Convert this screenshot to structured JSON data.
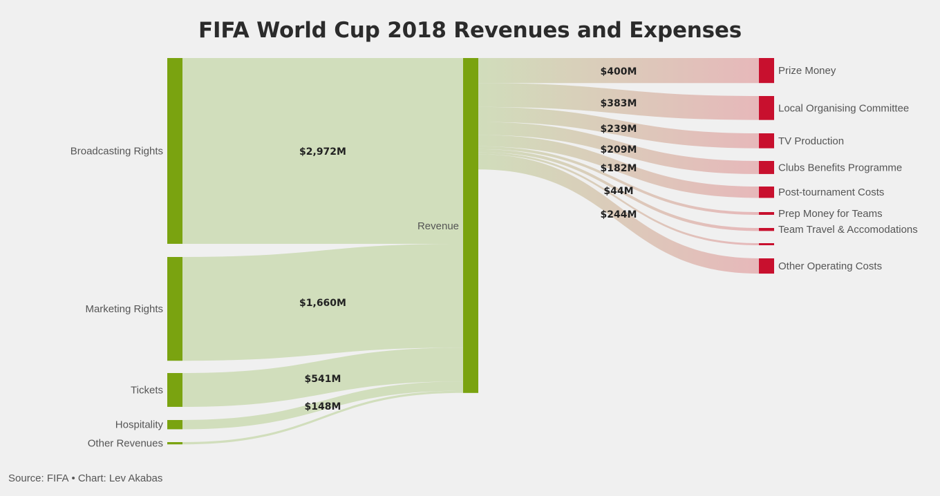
{
  "title": "FIFA World Cup 2018 Revenues and Expenses",
  "source": {
    "text": "Source: FIFA",
    "separator": "•",
    "credit": "Chart: Lev Akabas"
  },
  "colors": {
    "revenue_node": "#7aa310",
    "revenue_link": "#cfdcb8",
    "expense_node": "#c8102e",
    "expense_link": "#e6b5b7",
    "background": "#f0f0f0"
  },
  "chart_data": {
    "type": "sankey",
    "title": "FIFA World Cup 2018 Revenues and Expenses",
    "center_node": "Revenue",
    "sources": [
      {
        "name": "Broadcasting Rights",
        "value": 2972,
        "label": "$2,972M"
      },
      {
        "name": "Marketing Rights",
        "value": 1660,
        "label": "$1,660M"
      },
      {
        "name": "Tickets",
        "value": 541,
        "label": "$541M"
      },
      {
        "name": "Hospitality",
        "value": 148,
        "label": "$148M"
      },
      {
        "name": "Other Revenues",
        "value": 36,
        "label": ""
      }
    ],
    "targets": [
      {
        "name": "Prize Money",
        "value": 400,
        "label": "$400M"
      },
      {
        "name": "Local Organising Committee",
        "value": 383,
        "label": "$383M"
      },
      {
        "name": "TV Production",
        "value": 239,
        "label": "$239M"
      },
      {
        "name": "Clubs Benefits Programme",
        "value": 209,
        "label": "$209M"
      },
      {
        "name": "Post-tournament Costs",
        "value": 182,
        "label": "$182M"
      },
      {
        "name": "Prep Money for Teams",
        "value": 44,
        "label": "$44M"
      },
      {
        "name": "Team Travel & Accomodations",
        "value": 48,
        "label": ""
      },
      {
        "name": "",
        "value": 30,
        "label": ""
      },
      {
        "name": "Other Operating Costs",
        "value": 244,
        "label": "$244M"
      }
    ]
  }
}
